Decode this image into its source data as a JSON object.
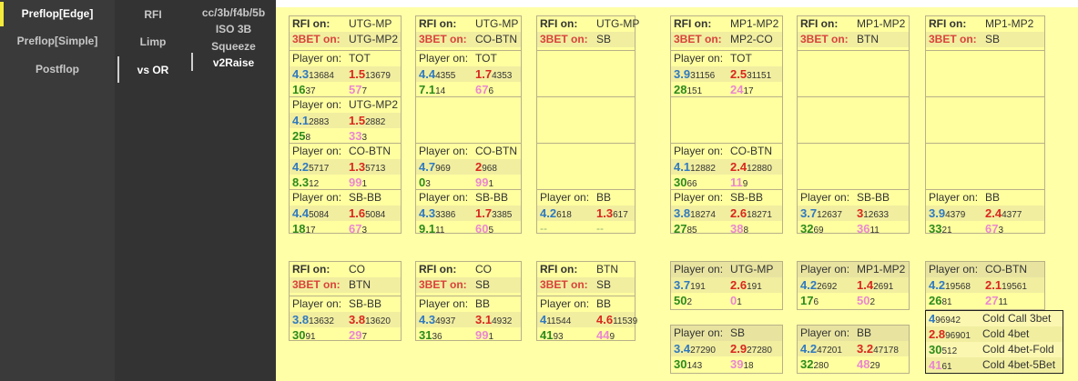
{
  "nav": {
    "col1": [
      "Preflop[Edge]",
      "Preflop[Simple]",
      "Postflop"
    ],
    "col2": [
      "RFI",
      "Limp",
      "vs OR"
    ],
    "col3": [
      "cc/3b/f4b/5b",
      "ISO 3B",
      "Squeeze",
      "v2Raise"
    ]
  },
  "labels": {
    "rfi_on": "RFI on:",
    "bet3_on": "3BET on:",
    "player_on": "Player on:"
  },
  "panels": [
    {
      "rfi": "UTG-MP",
      "bet3": "UTG-MP2",
      "groups": [
        {
          "player": "TOT",
          "a": "4.3",
          "an": "13684",
          "b": "1.5",
          "bn": "13679",
          "c": "16",
          "cn": "37",
          "d": "57",
          "dn": "7"
        },
        {
          "player": "UTG-MP2",
          "a": "4.1",
          "an": "2883",
          "b": "1.5",
          "bn": "2882",
          "c": "25",
          "cn": "8",
          "d": "33",
          "dn": "3"
        },
        {
          "player": "CO-BTN",
          "a": "4.2",
          "an": "5717",
          "b": "1.3",
          "bn": "5713",
          "c": "8.3",
          "cn": "12",
          "d": "99",
          "dn": "1"
        },
        {
          "player": "SB-BB",
          "a": "4.4",
          "an": "5084",
          "b": "1.6",
          "bn": "5084",
          "c": "18",
          "cn": "17",
          "d": "67",
          "dn": "3"
        }
      ]
    },
    {
      "rfi": "UTG-MP",
      "bet3": "CO-BTN",
      "groups": [
        {
          "player": "TOT",
          "a": "4.4",
          "an": "4355",
          "b": "1.7",
          "bn": "4353",
          "c": "7.1",
          "cn": "14",
          "d": "67",
          "dn": "6"
        },
        null,
        {
          "player": "CO-BTN",
          "a": "4.7",
          "an": "969",
          "b": "2",
          "bn": "968",
          "c": "0",
          "cn": "3",
          "d": "99",
          "dn": "1"
        },
        {
          "player": "SB-BB",
          "a": "4.3",
          "an": "3386",
          "b": "1.7",
          "bn": "3385",
          "c": "9.1",
          "cn": "11",
          "d": "60",
          "dn": "5"
        }
      ]
    },
    {
      "rfi": "UTG-MP",
      "bet3": "SB",
      "groups": [
        null,
        null,
        null,
        {
          "player": "BB",
          "a": "4.2",
          "an": "618",
          "b": "1.3",
          "bn": "617",
          "c": "--",
          "cn": "",
          "d": "--",
          "dn": ""
        }
      ]
    },
    {
      "rfi": "MP1-MP2",
      "bet3": "MP2-CO",
      "groups": [
        {
          "player": "TOT",
          "a": "3.9",
          "an": "31156",
          "b": "2.5",
          "bn": "31151",
          "c": "28",
          "cn": "151",
          "d": "24",
          "dn": "17"
        },
        null,
        {
          "player": "CO-BTN",
          "a": "4.1",
          "an": "12882",
          "b": "2.4",
          "bn": "12880",
          "c": "30",
          "cn": "66",
          "d": "11",
          "dn": "9"
        },
        {
          "player": "SB-BB",
          "a": "3.8",
          "an": "18274",
          "b": "2.6",
          "bn": "18271",
          "c": "27",
          "cn": "85",
          "d": "38",
          "dn": "8"
        }
      ]
    },
    {
      "rfi": "MP1-MP2",
      "bet3": "BTN",
      "groups": [
        null,
        null,
        null,
        {
          "player": "SB-BB",
          "a": "3.7",
          "an": "12637",
          "b": "3",
          "bn": "12633",
          "c": "32",
          "cn": "69",
          "d": "36",
          "dn": "11"
        }
      ]
    },
    {
      "rfi": "MP1-MP2",
      "bet3": "SB",
      "groups": [
        null,
        null,
        null,
        {
          "player": "BB",
          "a": "3.9",
          "an": "4379",
          "b": "2.4",
          "bn": "4377",
          "c": "33",
          "cn": "21",
          "d": "67",
          "dn": "3"
        }
      ]
    },
    {
      "rfi": "CO",
      "bet3": "BTN",
      "groups": [
        {
          "player": "SB-BB",
          "a": "3.8",
          "an": "13632",
          "b": "3.8",
          "bn": "13620",
          "c": "30",
          "cn": "91",
          "d": "29",
          "dn": "7"
        }
      ]
    },
    {
      "rfi": "CO",
      "bet3": "SB",
      "groups": [
        {
          "player": "BB",
          "a": "4.3",
          "an": "4937",
          "b": "3.1",
          "bn": "4932",
          "c": "31",
          "cn": "36",
          "d": "99",
          "dn": "1"
        }
      ]
    },
    {
      "rfi": "BTN",
      "bet3": "SB",
      "groups": [
        {
          "player": "BB",
          "a": "4",
          "an": "11544",
          "b": "4.6",
          "bn": "11539",
          "c": "41",
          "cn": "93",
          "d": "44",
          "dn": "9"
        }
      ]
    }
  ],
  "player_boxes": [
    {
      "player": "UTG-MP",
      "a": "3.7",
      "an": "191",
      "b": "2.6",
      "bn": "191",
      "c": "50",
      "cn": "2",
      "d": "0",
      "dn": "1"
    },
    {
      "player": "MP1-MP2",
      "a": "4.2",
      "an": "2692",
      "b": "1.4",
      "bn": "2691",
      "c": "17",
      "cn": "6",
      "d": "50",
      "dn": "2"
    },
    {
      "player": "CO-BTN",
      "a": "4.2",
      "an": "19568",
      "b": "2.1",
      "bn": "19561",
      "c": "26",
      "cn": "81",
      "d": "27",
      "dn": "11"
    },
    {
      "player": "SB",
      "a": "3.4",
      "an": "27290",
      "b": "2.9",
      "bn": "27280",
      "c": "30",
      "cn": "143",
      "d": "39",
      "dn": "18"
    },
    {
      "player": "BB",
      "a": "4.2",
      "an": "47201",
      "b": "3.2",
      "bn": "47178",
      "c": "32",
      "cn": "280",
      "d": "48",
      "dn": "29"
    }
  ],
  "legend": [
    {
      "v": "4",
      "n": "96942",
      "label": "Cold Call 3bet",
      "color": "#2f79c0"
    },
    {
      "v": "2.8",
      "n": "96901",
      "label": "Cold 4bet",
      "color": "#d9271e"
    },
    {
      "v": "30",
      "n": "512",
      "label": "Cold 4bet-Fold",
      "color": "#2d8a1b"
    },
    {
      "v": "41",
      "n": "61",
      "label": "Cold 4bet-5Bet",
      "color": "#ea87d0"
    }
  ],
  "colors": {
    "blue": "#2f79c0",
    "red": "#d9271e",
    "green": "#2d8a1b",
    "pink": "#ea87d0",
    "accent": "#f3ea3b"
  }
}
